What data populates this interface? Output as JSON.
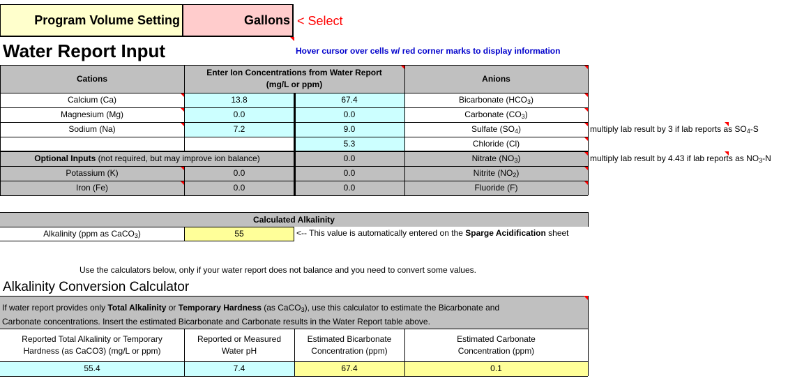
{
  "header": {
    "program_volume_label": "Program Volume Setting",
    "volume_unit": "Gallons",
    "select_hint": "< Select"
  },
  "title": "Water Report Input",
  "hover_hint": "Hover cursor over cells w/ red corner marks to display information",
  "ion_table": {
    "cations_header": "Cations",
    "concentration_header_line1": "Enter Ion Concentrations from Water Report",
    "concentration_header_line2": "(mg/L or ppm)",
    "anions_header": "Anions",
    "rows": [
      {
        "cation": "Calcium (Ca)",
        "cation_value": "13.8",
        "anion_value": "67.4",
        "anion": "Bicarbonate (HCO",
        "anion_sub": "3",
        "anion_end": ")"
      },
      {
        "cation": "Magnesium (Mg)",
        "cation_value": "0.0",
        "anion_value": "0.0",
        "anion": "Carbonate (CO",
        "anion_sub": "3",
        "anion_end": ")"
      },
      {
        "cation": "Sodium (Na)",
        "cation_value": "7.2",
        "anion_value": "9.0",
        "anion": "Sulfate (SO",
        "anion_sub": "4",
        "anion_end": ")"
      },
      {
        "cation": "",
        "cation_value": "",
        "anion_value": "5.3",
        "anion": "Chloride (Cl)",
        "anion_sub": "",
        "anion_end": ""
      }
    ],
    "optional_label_bold": "Optional Inputs",
    "optional_label_rest": " (not required, but may improve ion balance)",
    "optional_rows": [
      {
        "anion_value": "0.0",
        "anion": "Nitrate (NO",
        "anion_sub": "3",
        "anion_end": ")"
      },
      {
        "cation": "Potassium (K)",
        "cation_value": "0.0",
        "anion_value": "0.0",
        "anion": "Nitrite (NO",
        "anion_sub": "2",
        "anion_end": ")"
      },
      {
        "cation": "Iron (Fe)",
        "cation_value": "0.0",
        "anion_value": "0.0",
        "anion": "Fluoride (F)",
        "anion_sub": "",
        "anion_end": ""
      }
    ],
    "sulfate_note": "multiply lab result by 3 if lab reports as SO",
    "sulfate_note_sub": "4",
    "sulfate_note_end": "-S",
    "nitrate_note": "multiply lab result by 4.43 if lab reports as NO",
    "nitrate_note_sub": "3",
    "nitrate_note_end": "-N"
  },
  "calc_alkalinity": {
    "header": "Calculated Alkalinity",
    "label": "Alkalinity (ppm as CaCO",
    "label_sub": "3",
    "label_end": ")",
    "value": "55",
    "note_start": "<-- This value is automatically entered on the ",
    "note_bold": "Sparge Acidification",
    "note_end": " sheet"
  },
  "calculators_hint": "Use the calculators below, only if your water report does not balance and you need to convert some values.",
  "converter": {
    "title": "Alkalinity Conversion Calculator",
    "desc_1": "If water report provides only ",
    "desc_bold_1": "Total Alkalinity",
    "desc_2": " or ",
    "desc_bold_2": "Temporary Hardness",
    "desc_3": " (as CaCO",
    "desc_sub": "3",
    "desc_4": "), use this calculator to estimate the Bicarbonate and",
    "desc_line2": "Carbonate concentrations.  Insert the estimated Bicarbonate and Carbonate results in the Water Report table above.",
    "col1_line1": "Reported Total Alkalinity or Temporary",
    "col1_line2": "Hardness (as CaCO3) (mg/L or ppm)",
    "col2_line1": "Reported or Measured",
    "col2_line2": "Water pH",
    "col3_line1": "Estimated Bicarbonate",
    "col3_line2": "Concentration (ppm)",
    "col4_line1": "Estimated Carbonate",
    "col4_line2": "Concentration (ppm)",
    "total_alkalinity": "55.4",
    "ph": "7.4",
    "est_bicarbonate": "67.4",
    "est_carbonate": "0.1"
  },
  "colors": {
    "input_cyan": "#ccffff",
    "output_yellow": "#ffff99",
    "header_gray": "#c0c0c0",
    "setting_pink": "#ffcccc",
    "setting_cream": "#ffffcc",
    "comment_mark_red": "#ff0000",
    "hint_blue": "#0000cc"
  }
}
